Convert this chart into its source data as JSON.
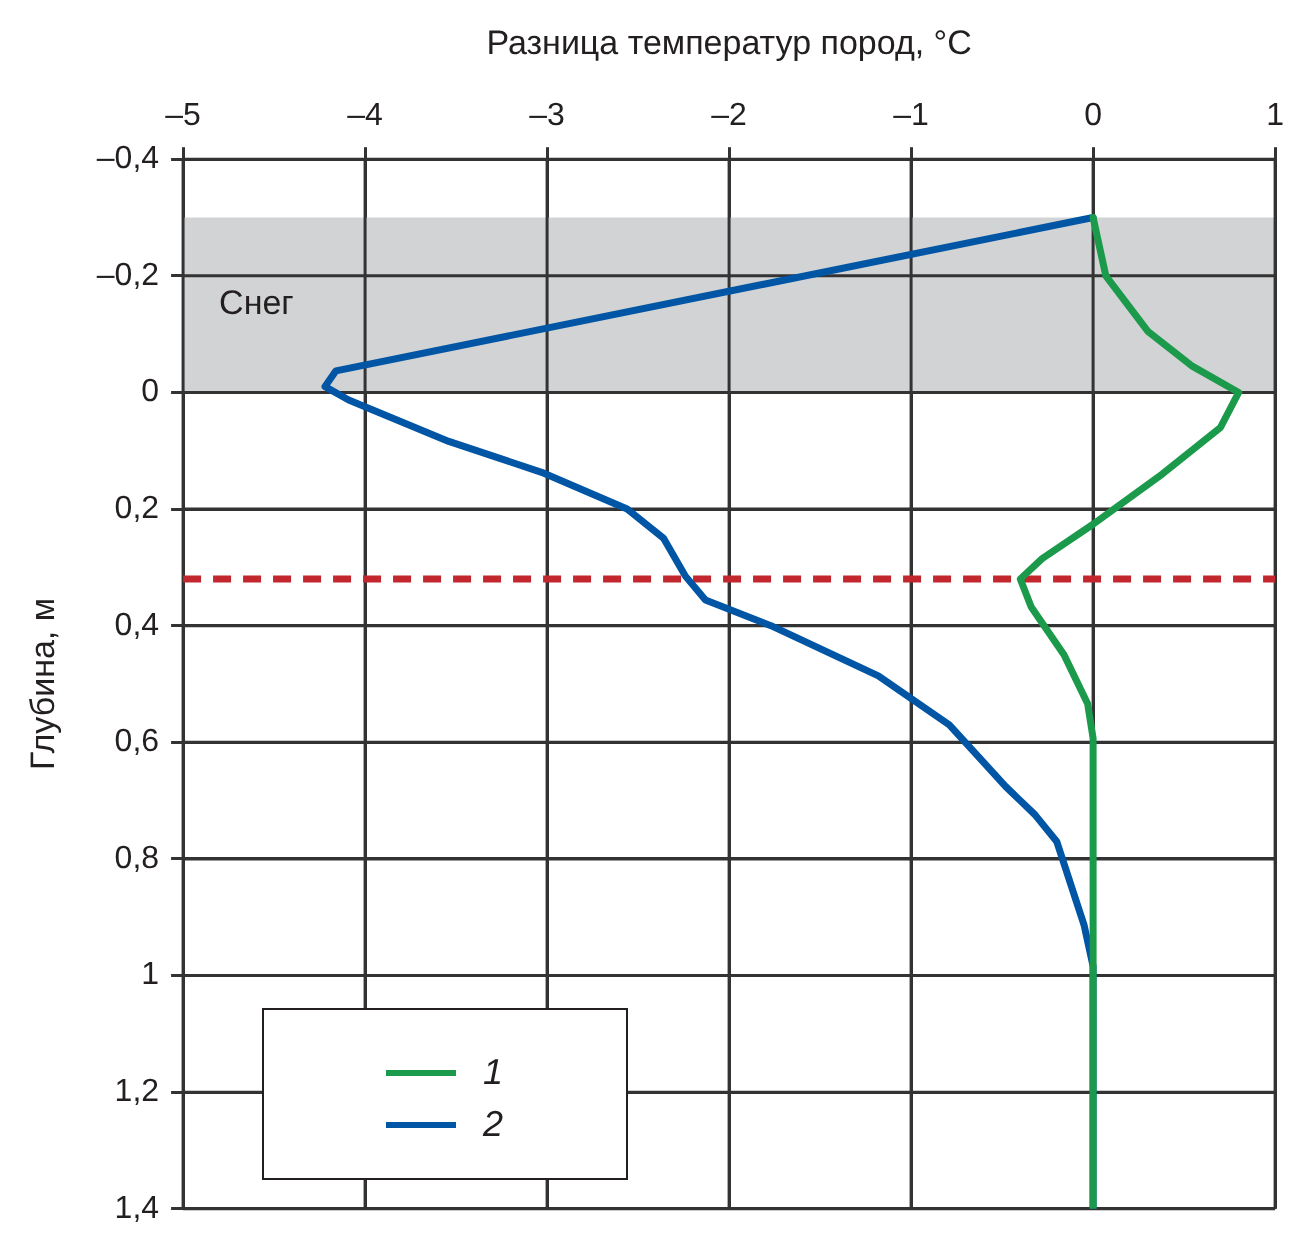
{
  "chart_data": {
    "type": "line",
    "xlabel": "Разница температур пород, °C",
    "ylabel": "Глубина, м",
    "xlim": [
      -5,
      1
    ],
    "xticks": [
      {
        "value": -5,
        "label": "–5"
      },
      {
        "value": -4,
        "label": "–4"
      },
      {
        "value": -3,
        "label": "–3"
      },
      {
        "value": -2,
        "label": "–2"
      },
      {
        "value": -1,
        "label": "–1"
      },
      0,
      1
    ],
    "ylim": [
      1.4,
      -0.4
    ],
    "yticks": [
      {
        "value": -0.4,
        "label": "–0,4"
      },
      {
        "value": -0.2,
        "label": "–0,2"
      },
      0,
      {
        "value": 0.2,
        "label": "0,2"
      },
      {
        "value": 0.4,
        "label": "0,4"
      },
      {
        "value": 0.6,
        "label": "0,6"
      },
      {
        "value": 0.8,
        "label": "0,8"
      },
      1,
      {
        "value": 1.2,
        "label": "1,2"
      },
      {
        "value": 1.4,
        "label": "1,4"
      }
    ],
    "grid": true,
    "legend": "bottom left",
    "line_style": "solid",
    "marker": "none",
    "series": [
      {
        "name": "1",
        "color": "#1a9a4a",
        "x": [
          0,
          0.07,
          0.3,
          0.54,
          0.8,
          0.7,
          0.38,
          0,
          -0.28,
          -0.4,
          -0.34,
          -0.16,
          -0.03,
          0,
          0
        ],
        "values": [
          -0.3,
          -0.2,
          -0.105,
          -0.046,
          0,
          0.06,
          0.14,
          0.226,
          0.285,
          0.32,
          0.368,
          0.45,
          0.534,
          0.593,
          1.4
        ]
      },
      {
        "name": "2",
        "color": "#0055a5",
        "x": [
          0,
          -4.16,
          -4.22,
          -4.09,
          -3.54,
          -3.03,
          -2.56,
          -2.36,
          -2.24,
          -2.13,
          -1.77,
          -1.18,
          -0.79,
          -0.48,
          -0.32,
          -0.2,
          -0.05,
          0,
          0
        ],
        "values": [
          -0.3,
          -0.037,
          -0.01,
          0.013,
          0.084,
          0.137,
          0.2,
          0.25,
          0.315,
          0.356,
          0.4,
          0.486,
          0.57,
          0.676,
          0.724,
          0.77,
          0.913,
          0.984,
          1.4
        ]
      }
    ],
    "bands": [
      {
        "axis": "y",
        "from": -0.3,
        "to": 0,
        "label": "Снег",
        "color": "#d1d3d4"
      }
    ],
    "ref_lines": [
      {
        "axis": "y",
        "value": 0.32,
        "color": "#c1272d",
        "line_style": "dashed"
      }
    ]
  }
}
